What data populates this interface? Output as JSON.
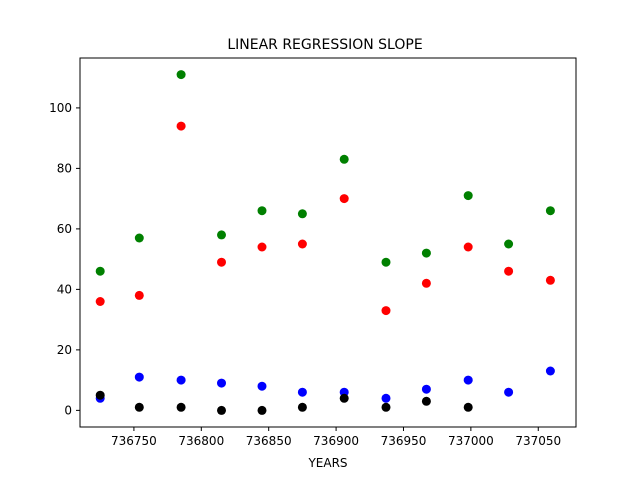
{
  "chart_data": {
    "type": "scatter",
    "title": "LINEAR REGRESSION SLOPE",
    "xlabel": "YEARS",
    "ylabel": "",
    "xlim": [
      736710,
      737078
    ],
    "ylim": [
      -5.5,
      116.5
    ],
    "xticks": [
      736750,
      736800,
      736850,
      736900,
      736950,
      737000,
      737050
    ],
    "yticks": [
      0,
      20,
      40,
      60,
      80,
      100
    ],
    "grid": false,
    "x": [
      736725,
      736754,
      736785,
      736815,
      736845,
      736875,
      736906,
      736937,
      736967,
      736998,
      737028,
      737059
    ],
    "series": [
      {
        "color": "#008000",
        "values": [
          46,
          57,
          111,
          58,
          66,
          65,
          83,
          49,
          52,
          71,
          55,
          66
        ]
      },
      {
        "color": "#ff0000",
        "values": [
          36,
          38,
          94,
          49,
          54,
          55,
          70,
          33,
          42,
          54,
          46,
          43
        ]
      },
      {
        "color": "#0000ff",
        "values": [
          4,
          11,
          10,
          9,
          8,
          6,
          6,
          4,
          7,
          10,
          6,
          13
        ]
      },
      {
        "color": "#000000",
        "values": [
          5,
          1,
          1,
          0,
          0,
          1,
          4,
          1,
          3,
          1,
          null,
          null
        ]
      }
    ]
  }
}
